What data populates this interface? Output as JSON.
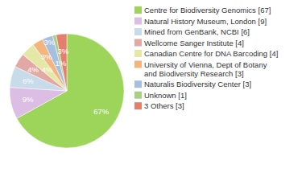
{
  "chart_data": {
    "type": "pie",
    "categories": [
      "Centre for Biodiversity Genomics [67]",
      "Natural History Museum, London [9]",
      "Mined from GenBank, NCBI [6]",
      "Wellcome Sanger Institute [4]",
      "Canadian Centre for DNA Barcoding [4]",
      "University of Vienna, Dept of Botany and Biodiversity Research [3]",
      "Naturalis Biodiversity Center [3]",
      "Unknown [1]",
      "3 Others [3]"
    ],
    "values": [
      67,
      9,
      6,
      4,
      4,
      3,
      3,
      1,
      3
    ],
    "value_labels": [
      "67%",
      "9%",
      "6%",
      "4%",
      "4%",
      "3%",
      "3%",
      "1%",
      "3%"
    ],
    "colors": [
      "#9dd55a",
      "#dcbde3",
      "#c8dbe8",
      "#e2a9a4",
      "#e3e8a6",
      "#f4b47d",
      "#a6bfe0",
      "#a9cf84",
      "#e57f6d"
    ],
    "data_labels": true,
    "legend": "right"
  }
}
